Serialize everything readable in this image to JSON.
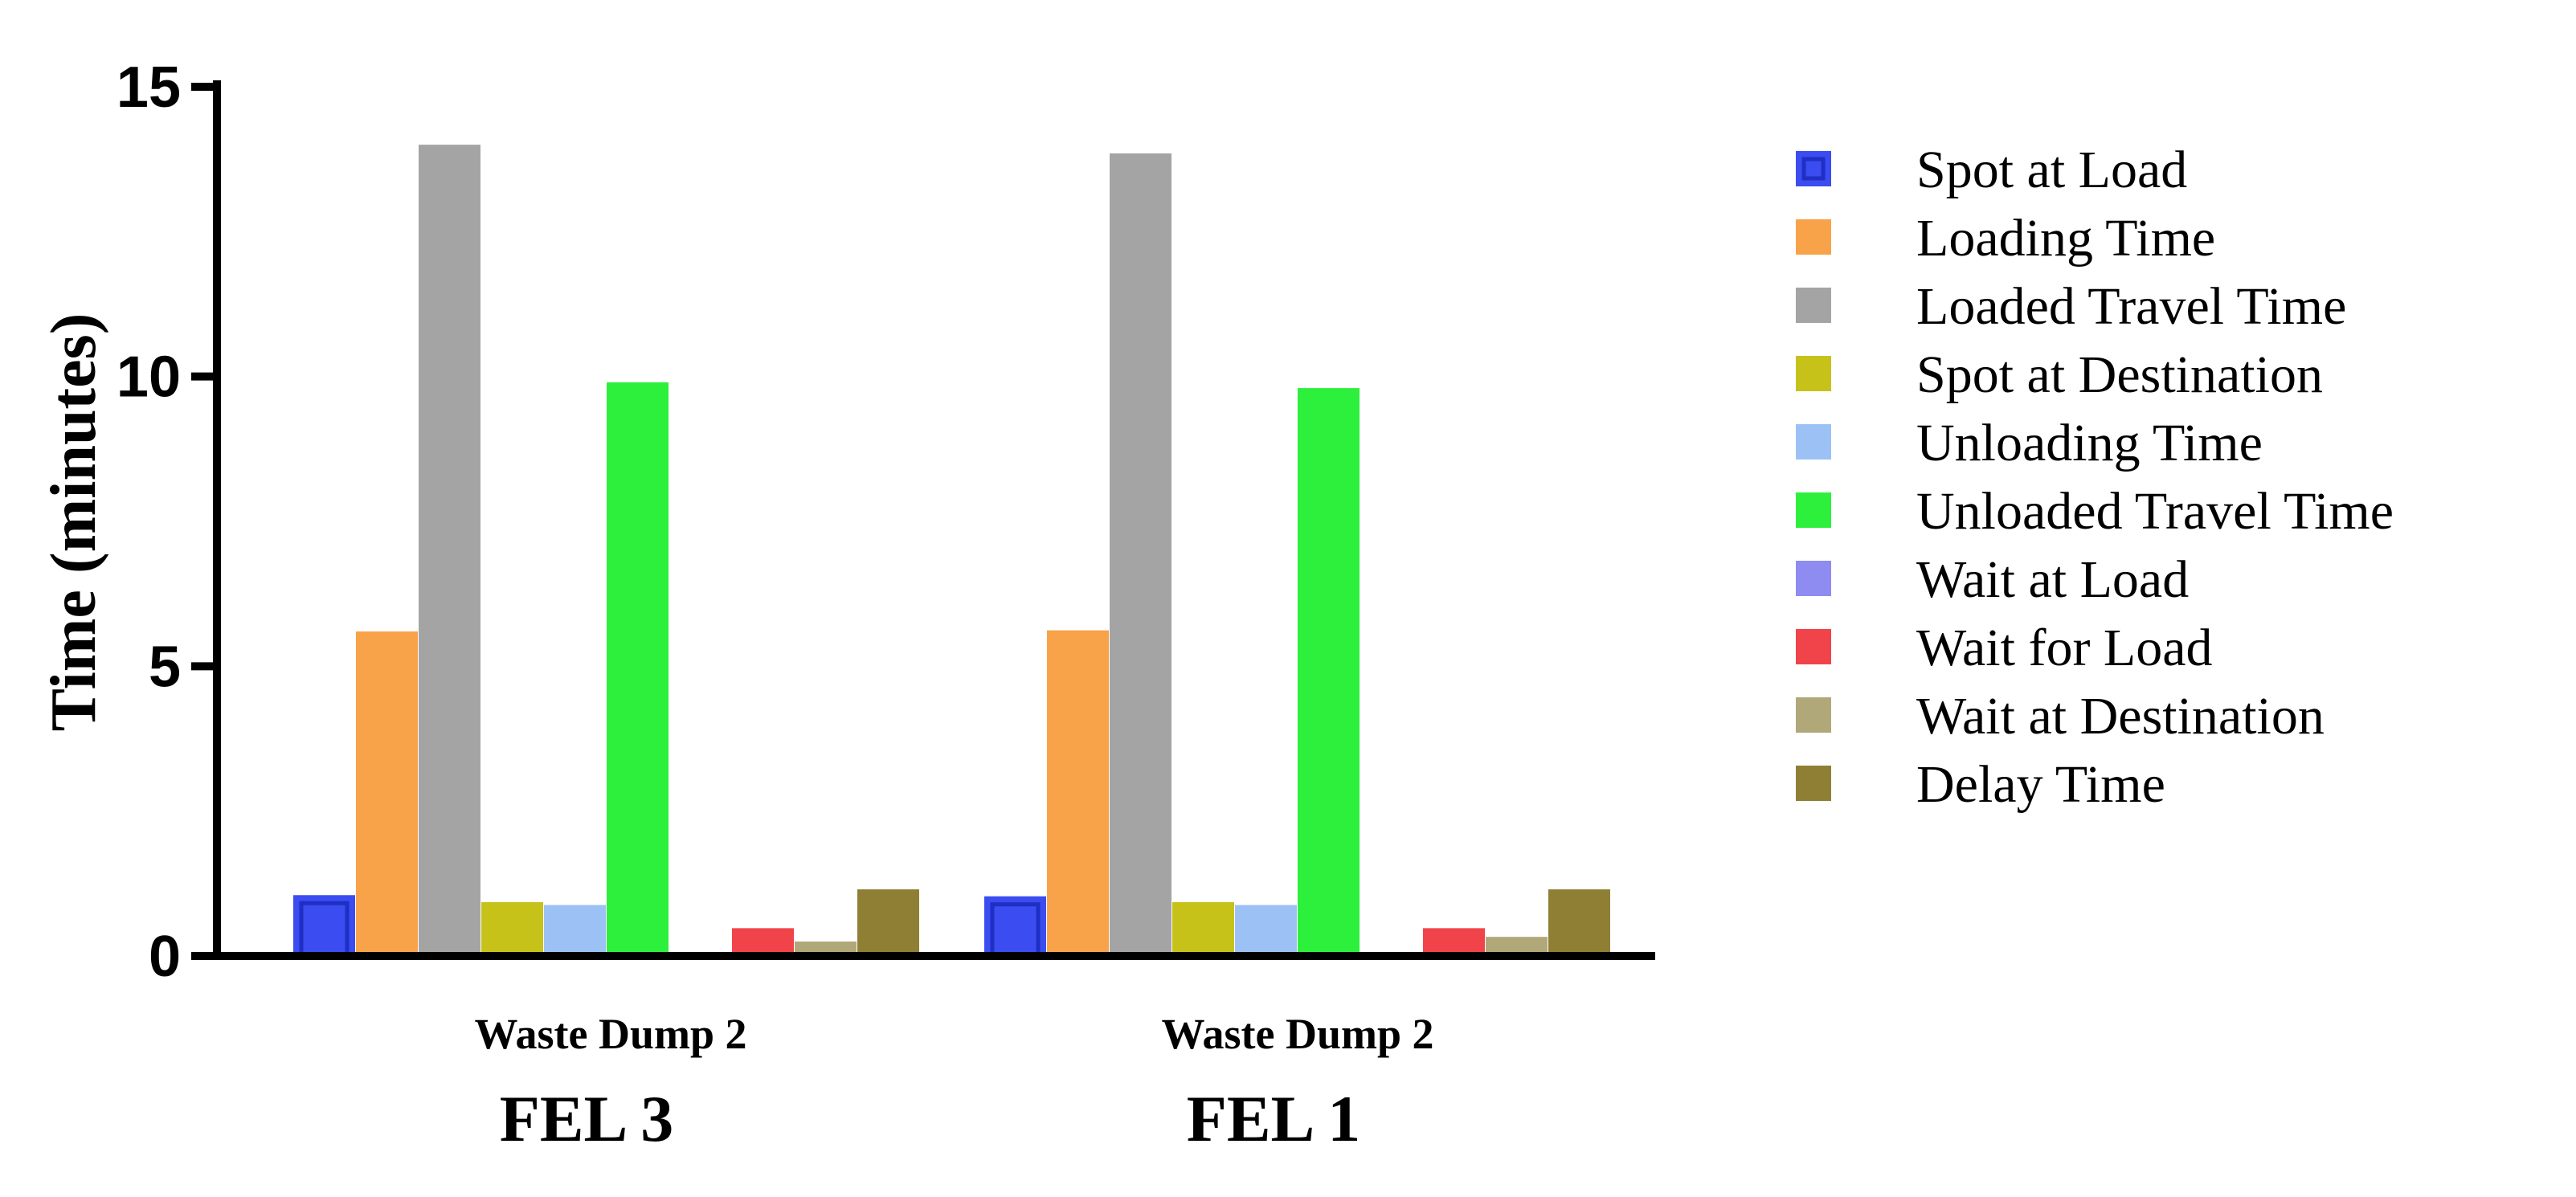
{
  "chart_data": {
    "type": "bar",
    "ylabel": "Time (minutes)",
    "ylim": [
      0,
      15
    ],
    "yticks": [
      "0",
      "5",
      "10",
      "15"
    ],
    "grid": false,
    "legend_placement": "right",
    "groups": [
      {
        "category": "Waste Dump 2",
        "group": "FEL 3"
      },
      {
        "category": "Waste Dump 2",
        "group": "FEL 1"
      }
    ],
    "series": [
      {
        "name": "Spot at Load",
        "color": "#3b4cf0",
        "values": [
          1.05,
          1.03
        ]
      },
      {
        "name": "Loading Time",
        "color": "#f8a24a",
        "values": [
          5.6,
          5.62
        ]
      },
      {
        "name": "Loaded Travel Time",
        "color": "#a4a4a4",
        "values": [
          14.0,
          13.85
        ]
      },
      {
        "name": "Spot at Destination",
        "color": "#c7c21a",
        "values": [
          0.93,
          0.93
        ]
      },
      {
        "name": "Unloading Time",
        "color": "#9cc2f5",
        "values": [
          0.88,
          0.88
        ]
      },
      {
        "name": "Unloaded Travel Time",
        "color": "#2df03c",
        "values": [
          9.9,
          9.8
        ]
      },
      {
        "name": "Wait at Load",
        "color": "#8e8cf0",
        "values": [
          0,
          0
        ]
      },
      {
        "name": "Wait for Load",
        "color": "#f0444a",
        "values": [
          0.48,
          0.48
        ]
      },
      {
        "name": "Wait at Destination",
        "color": "#b0a878",
        "values": [
          0.25,
          0.33
        ]
      },
      {
        "name": "Delay Time",
        "color": "#8e7f35",
        "values": [
          1.15,
          1.15
        ]
      }
    ]
  }
}
